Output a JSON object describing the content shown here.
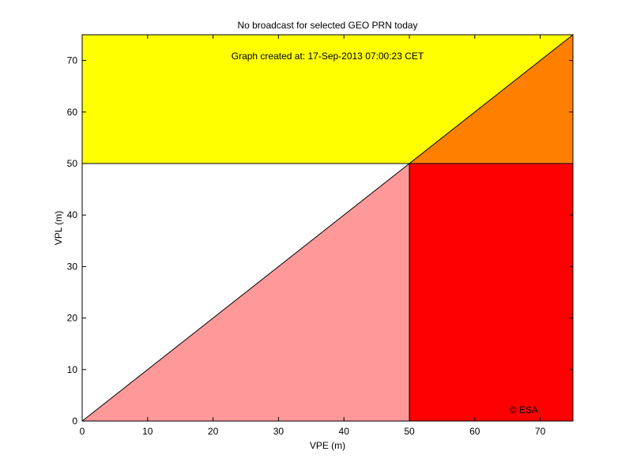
{
  "chart_data": {
    "type": "area",
    "title": "No broadcast for selected GEO PRN today",
    "annotation": "Graph created at: 17-Sep-2013 07:00:23 CET",
    "watermark": "© ESA",
    "xlabel": "VPE (m)",
    "ylabel": "VPL (m)",
    "xlim": [
      0,
      75
    ],
    "ylim": [
      0,
      75
    ],
    "xticks": [
      0,
      10,
      20,
      30,
      40,
      50,
      60,
      70
    ],
    "yticks": [
      0,
      10,
      20,
      30,
      40,
      50,
      60,
      70
    ],
    "alert_limit": 50,
    "grid": false,
    "regions": [
      {
        "color": "#ffff00",
        "polygon": [
          [
            0,
            50
          ],
          [
            0,
            75
          ],
          [
            75,
            75
          ],
          [
            50,
            50
          ]
        ]
      },
      {
        "color": "#ff8000",
        "polygon": [
          [
            50,
            50
          ],
          [
            75,
            75
          ],
          [
            75,
            50
          ]
        ]
      },
      {
        "color": "#ffffff",
        "polygon": [
          [
            0,
            0
          ],
          [
            0,
            50
          ],
          [
            50,
            50
          ]
        ]
      },
      {
        "color": "#ff9999",
        "polygon": [
          [
            0,
            0
          ],
          [
            50,
            50
          ],
          [
            50,
            0
          ]
        ]
      },
      {
        "color": "#ff0000",
        "polygon": [
          [
            50,
            0
          ],
          [
            50,
            50
          ],
          [
            75,
            50
          ],
          [
            75,
            0
          ]
        ]
      }
    ],
    "series": []
  }
}
